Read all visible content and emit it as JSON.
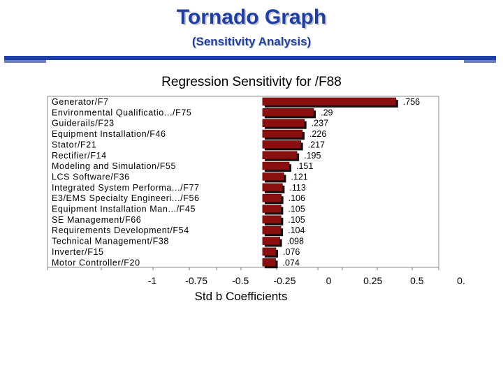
{
  "slide": {
    "title": "Tornado Graph",
    "subtitle": "(Sensitivity Analysis)"
  },
  "colors": {
    "title": "#1f3fa8",
    "bar": "#8b0f0f",
    "bar_shadow": "#111111",
    "rule": "#1f3fa8"
  },
  "chart_data": {
    "type": "bar",
    "orientation": "horizontal",
    "title": "Regression Sensitivity for /F88",
    "xlabel": "Std b Coefficients",
    "xticks": [
      "-1",
      "-0.75",
      "-0.5",
      "-0.25",
      "0",
      "0.25",
      "0.5",
      "0."
    ],
    "xlim": [
      -1,
      0.75
    ],
    "categories": [
      "Generator/F7",
      "Environmental Qualificatio.../F75",
      "Guiderails/F23",
      "Equipment Installation/F46",
      "Stator/F21",
      "Rectifier/F14",
      "Modeling and Simulation/F55",
      "LCS Software/F36",
      "Integrated System Performa.../F77",
      "E3/EMS Specialty Engineeri.../F56",
      "Equipment Installation Man.../F45",
      "SE Management/F66",
      "Requirements Development/F54",
      "Technical Management/F38",
      "Inverter/F15",
      "Motor Controller/F20"
    ],
    "values": [
      0.756,
      0.29,
      0.237,
      0.226,
      0.217,
      0.195,
      0.151,
      0.121,
      0.113,
      0.106,
      0.105,
      0.105,
      0.104,
      0.098,
      0.076,
      0.074
    ],
    "data_labels": [
      ".756",
      ".29",
      ".237",
      ".226",
      ".217",
      ".195",
      ".151",
      ".121",
      ".113",
      ".106",
      ".105",
      ".105",
      ".104",
      ".098",
      ".076",
      ".074"
    ]
  }
}
